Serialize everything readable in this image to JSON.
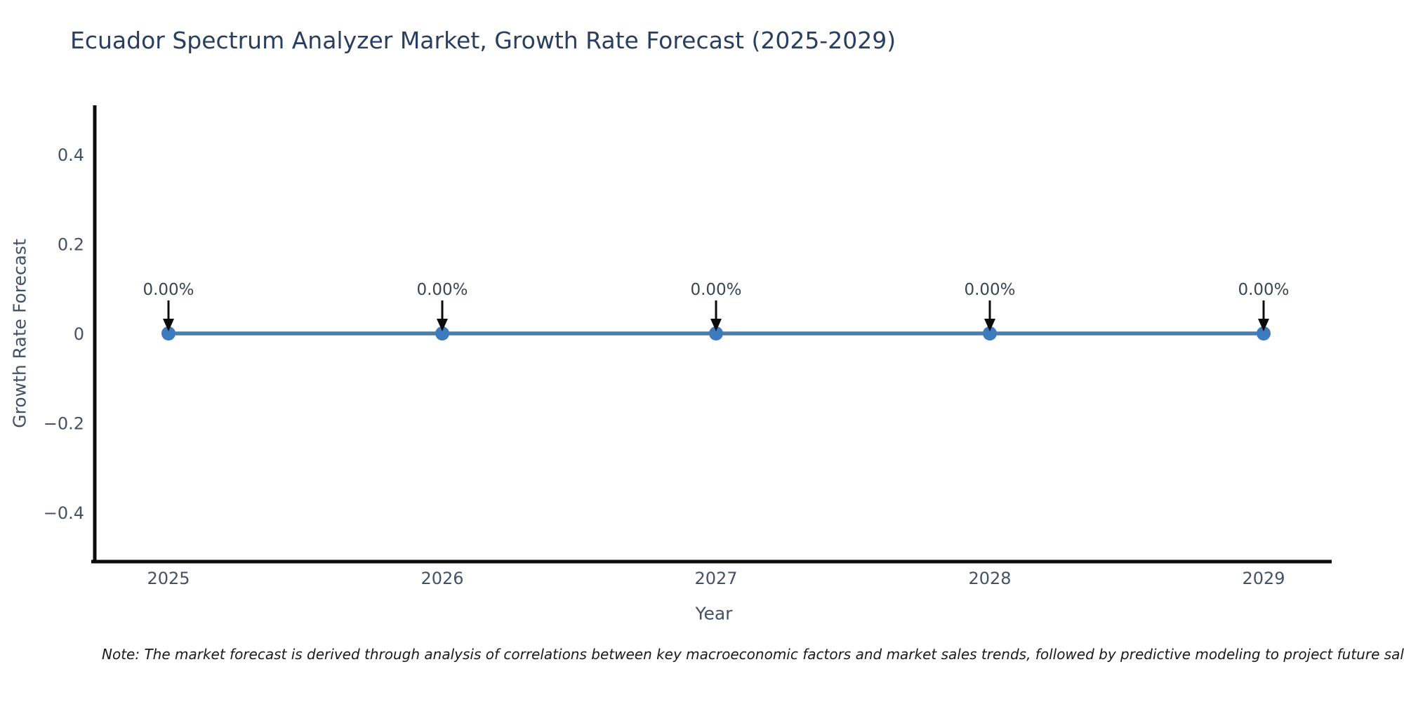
{
  "chart_data": {
    "type": "line",
    "title": "Ecuador Spectrum Analyzer Market, Growth Rate Forecast (2025-2029)",
    "xlabel": "Year",
    "ylabel": "Growth Rate Forecast",
    "x": [
      2025,
      2026,
      2027,
      2028,
      2029
    ],
    "series": [
      {
        "name": "Growth Rate Forecast",
        "values": [
          0,
          0,
          0,
          0,
          0
        ]
      }
    ],
    "point_labels": [
      "0.00%",
      "0.00%",
      "0.00%",
      "0.00%",
      "0.00%"
    ],
    "ylim": [
      -0.51,
      0.51
    ],
    "yticks": [
      0.4,
      0.2,
      0,
      -0.2,
      -0.4
    ],
    "grid": false,
    "legend": "none",
    "colors": {
      "line": "#4d7ea6",
      "marker": "#3d7bbf",
      "axis_line": "#0b0b0b",
      "title": "#2a3f5f",
      "tick_label": "#455266",
      "annotation_text": "#3a4654",
      "annotation_arrow": "#0b0b0b",
      "background": "#ffffff"
    }
  },
  "note": "Note: The market forecast is derived through analysis of correlations between key macroeconomic factors and market sales trends, followed by predictive modeling to project future sales."
}
